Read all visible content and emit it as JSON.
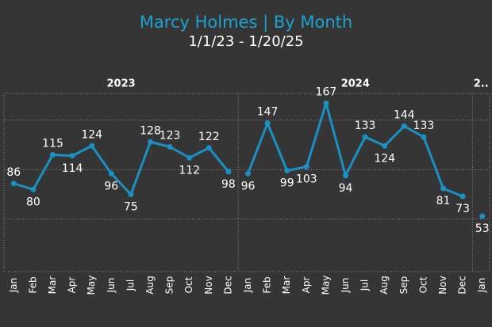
{
  "chart_data": {
    "type": "line",
    "title": "Marcy Holmes | By Month",
    "subtitle": "1/1/23 - 1/20/25",
    "color": "#1b90c2",
    "ylim": [
      -3,
      177
    ],
    "yticks": [
      50,
      100,
      150
    ],
    "grid": true,
    "panels": [
      {
        "name": "2023",
        "categories": [
          "Jan",
          "Feb",
          "Mar",
          "Apr",
          "May",
          "Jun",
          "Jul",
          "Aug",
          "Sep",
          "Oct",
          "Nov",
          "Dec"
        ],
        "values": [
          86,
          80,
          115,
          114,
          124,
          96,
          75,
          128,
          123,
          112,
          122,
          98
        ]
      },
      {
        "name": "2024",
        "categories": [
          "Jan",
          "Feb",
          "Mar",
          "Apr",
          "May",
          "Jun",
          "Jul",
          "Aug",
          "Sep",
          "Oct",
          "Nov",
          "Dec"
        ],
        "values": [
          96,
          147,
          99,
          103,
          167,
          94,
          133,
          124,
          144,
          133,
          81,
          73
        ]
      },
      {
        "name": "2..",
        "categories": [
          "Jan"
        ],
        "values": [
          53
        ]
      }
    ]
  }
}
